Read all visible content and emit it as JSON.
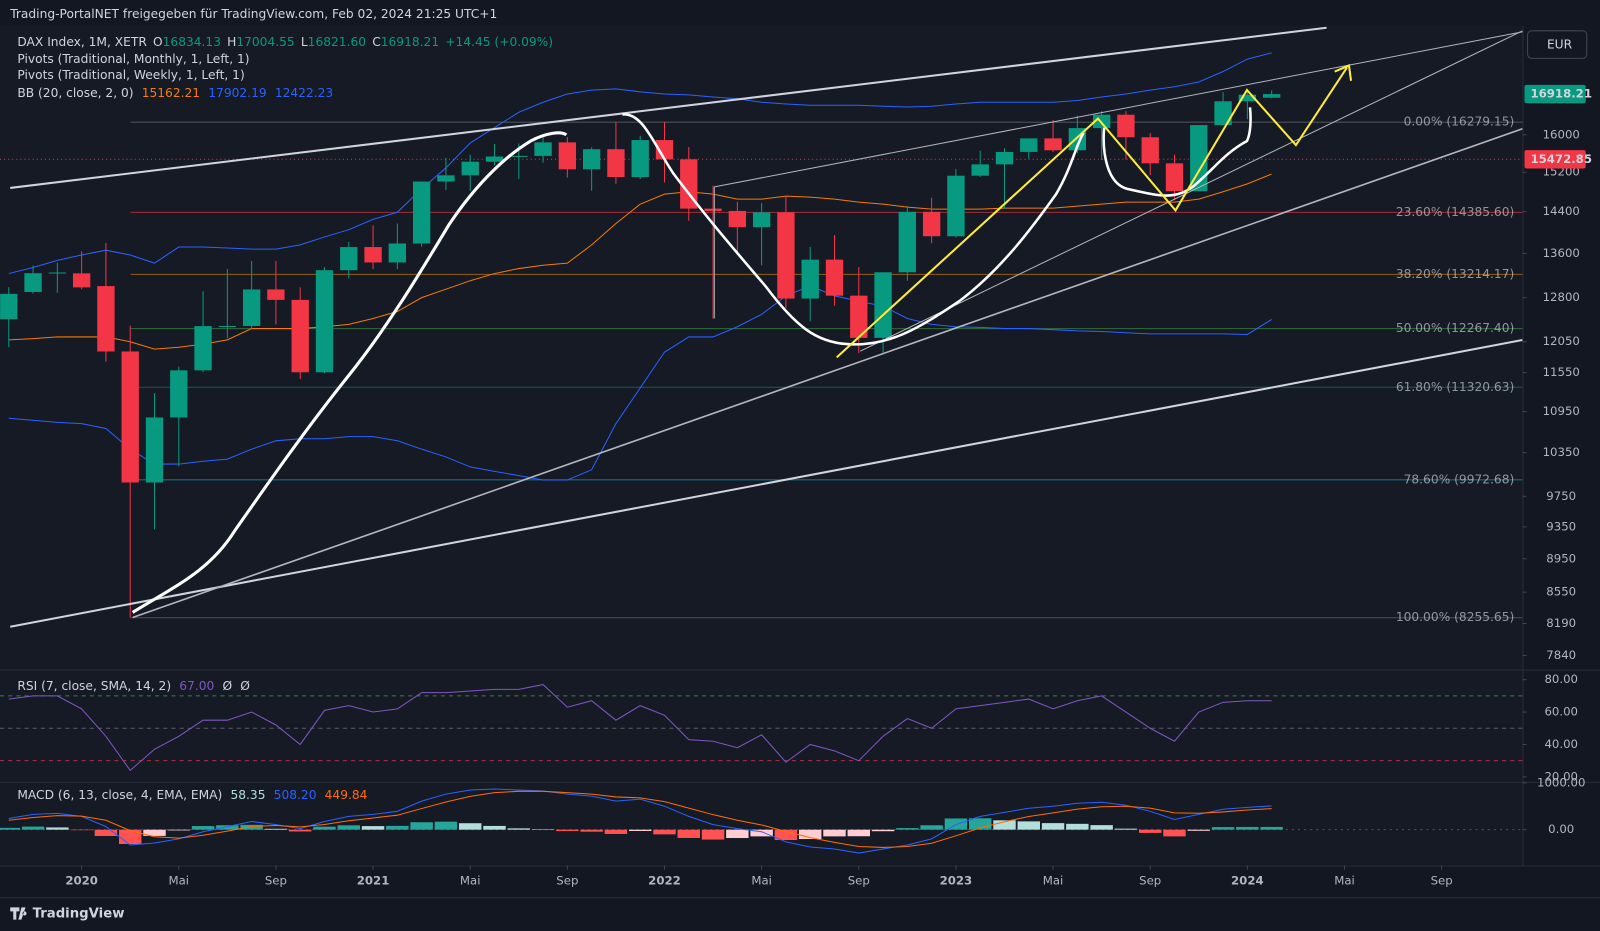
{
  "header": "Trading-PortalNET freigegeben für TradingView.com, Feb 02, 2024 21:25 UTC+1",
  "footer": "TradingView",
  "chart_data": [
    {
      "type": "candlestick",
      "title": "DAX Index, 1M, XETR",
      "currency": "EUR",
      "ohlc_keys": [
        "O",
        "H",
        "L",
        "C"
      ],
      "legend_labels": [
        "16834.13",
        "17004.55",
        "16821.60",
        "16918.21"
      ],
      "change": "+14.45 (+0.09%)",
      "indicators": [
        "Pivots (Traditional, Monthly, 1, Left, 1)",
        "Pivots (Traditional, Weekly, 1, Left, 1)"
      ],
      "up_color": "#089981",
      "down_color": "#f23645",
      "log_scale": true,
      "grid": false,
      "x": [
        "2019-10",
        "2019-11",
        "2019-12",
        "2020-01",
        "2020-02",
        "2020-03",
        "2020-04",
        "2020-05",
        "2020-06",
        "2020-07",
        "2020-08",
        "2020-09",
        "2020-10",
        "2020-11",
        "2020-12",
        "2021-01",
        "2021-02",
        "2021-03",
        "2021-04",
        "2021-05",
        "2021-06",
        "2021-07",
        "2021-08",
        "2021-09",
        "2021-10",
        "2021-11",
        "2021-12",
        "2022-01",
        "2022-02",
        "2022-03",
        "2022-04",
        "2022-05",
        "2022-06",
        "2022-07",
        "2022-08",
        "2022-09",
        "2022-10",
        "2022-11",
        "2022-12",
        "2023-01",
        "2023-02",
        "2023-03",
        "2023-04",
        "2023-05",
        "2023-06",
        "2023-07",
        "2023-08",
        "2023-09",
        "2023-10",
        "2023-11",
        "2023-12",
        "2024-01",
        "2024-02"
      ],
      "open": [
        12428,
        12900,
        13236,
        13233,
        13005,
        11890,
        9936,
        10862,
        11587,
        12311,
        12313,
        12945,
        12761,
        11556,
        13291,
        13719,
        13433,
        13786,
        15008,
        15136,
        15421,
        15531,
        15544,
        15835,
        15261,
        15688,
        15100,
        15885,
        15471,
        14461,
        14415,
        14098,
        14388,
        12784,
        13484,
        12835,
        12114,
        13253,
        14397,
        13924,
        15128,
        15365,
        15629,
        15922,
        15664,
        16148,
        16447,
        15947,
        15387,
        14810,
        16215,
        16752,
        16834.13
      ],
      "high": [
        12986,
        13374,
        13425,
        13640,
        13795,
        12318,
        11231,
        11645,
        12913,
        13314,
        13461,
        13460,
        12983,
        13350,
        13816,
        14131,
        14169,
        15008,
        15502,
        15568,
        15803,
        15810,
        15981,
        15950,
        15727,
        16290,
        15978,
        16285,
        15736,
        14925,
        14597,
        14575,
        14707,
        13720,
        13947,
        13349,
        13254,
        14516,
        14676,
        15270,
        15658,
        15706,
        15922,
        16331,
        16427,
        16529,
        16528,
        16043,
        15575,
        16215,
        16963,
        16990,
        17004.55
      ],
      "low": [
        11958,
        12870,
        12886,
        12948,
        11725,
        8256,
        9320,
        10160,
        11557,
        12107,
        12253,
        12340,
        11450,
        11542,
        13144,
        13310,
        13310,
        13727,
        14836,
        14816,
        15345,
        15062,
        15400,
        15089,
        14819,
        14959,
        15058,
        14989,
        14223,
        12439,
        13618,
        13381,
        12618,
        12391,
        12659,
        11863,
        11869,
        13099,
        13791,
        13900,
        15101,
        14458,
        15482,
        15629,
        15600,
        15456,
        15469,
        15138,
        14630,
        14810,
        16215,
        16345,
        16821.6
      ],
      "close": [
        12867,
        13236,
        13249,
        12982,
        11890,
        9936,
        10862,
        11587,
        12311,
        12313,
        12945,
        12761,
        11556,
        13291,
        13719,
        13433,
        13786,
        15008,
        15136,
        15421,
        15531,
        15544,
        15835,
        15261,
        15688,
        15100,
        15885,
        15471,
        14461,
        14415,
        14098,
        14388,
        12784,
        13484,
        12835,
        12114,
        13253,
        14397,
        13924,
        15128,
        15365,
        15629,
        15922,
        15664,
        16148,
        16447,
        15947,
        15387,
        14810,
        16215,
        16752,
        16904,
        16918.21
      ],
      "ylim": [
        7700,
        18580
      ],
      "yticks": [
        16000,
        15200,
        14400,
        13600,
        12800,
        12050,
        11550,
        10950,
        10350,
        9750,
        9350,
        8950,
        8550,
        8190,
        7840
      ],
      "xticks": [
        {
          "value": "2020-01",
          "label": "2020"
        },
        {
          "value": "2020-05",
          "label": "Mai"
        },
        {
          "value": "2020-09",
          "label": "Sep"
        },
        {
          "value": "2021-01",
          "label": "2021"
        },
        {
          "value": "2021-05",
          "label": "Mai"
        },
        {
          "value": "2021-09",
          "label": "Sep"
        },
        {
          "value": "2022-01",
          "label": "2022"
        },
        {
          "value": "2022-05",
          "label": "Mai"
        },
        {
          "value": "2022-09",
          "label": "Sep"
        },
        {
          "value": "2023-01",
          "label": "2023"
        },
        {
          "value": "2023-05",
          "label": "Mai"
        },
        {
          "value": "2023-09",
          "label": "Sep"
        },
        {
          "value": "2024-01",
          "label": "2024"
        },
        {
          "value": "2024-05",
          "label": "Mai"
        },
        {
          "value": "2024-09",
          "label": "Sep"
        }
      ],
      "bb": {
        "title": "BB (20, close, 2, 0)",
        "series": [
          {
            "color": "#f57c00",
            "values": [
              12080,
              12100,
              12130,
              12130,
              12130,
              12050,
              11930,
              11960,
              12010,
              12080,
              12270,
              12270,
              12270,
              12300,
              12340,
              12440,
              12560,
              12800,
              12950,
              13100,
              13230,
              13320,
              13380,
              13420,
              13760,
              14170,
              14550,
              14750,
              14800,
              14750,
              14650,
              14650,
              14710,
              14690,
              14650,
              14590,
              14550,
              14490,
              14450,
              14450,
              14450,
              14470,
              14470,
              14470,
              14510,
              14550,
              14590,
              14590,
              14590,
              14650,
              14800,
              14960,
              15162.21
            ]
          },
          {
            "color": "#2962ff",
            "values": [
              13230,
              13340,
              13470,
              13570,
              13660,
              13570,
              13420,
              13720,
              13720,
              13700,
              13680,
              13680,
              13760,
              13910,
              14050,
              14250,
              14390,
              14860,
              15290,
              15820,
              16160,
              16500,
              16730,
              16920,
              17010,
              17040,
              16970,
              16920,
              16900,
              16850,
              16810,
              16730,
              16690,
              16660,
              16660,
              16660,
              16640,
              16620,
              16640,
              16690,
              16730,
              16730,
              16730,
              16730,
              16770,
              16850,
              16920,
              17010,
              17090,
              17200,
              17450,
              17750,
              17902.19
            ]
          },
          {
            "color": "#2962ff",
            "values": [
              10850,
              10820,
              10790,
              10770,
              10700,
              10400,
              10190,
              10190,
              10230,
              10260,
              10400,
              10520,
              10550,
              10550,
              10580,
              10580,
              10520,
              10400,
              10290,
              10150,
              10090,
              10030,
              9970,
              9970,
              10110,
              10770,
              11310,
              11880,
              12130,
              12130,
              12300,
              12510,
              12830,
              13010,
              12830,
              12740,
              12650,
              12440,
              12340,
              12300,
              12290,
              12270,
              12270,
              12250,
              12230,
              12220,
              12200,
              12180,
              12180,
              12180,
              12180,
              12170,
              12422.23
            ]
          }
        ]
      },
      "fib": [
        {
          "value": 16279.15,
          "label": "0.00% (16279.15)",
          "color": "#787b86"
        },
        {
          "value": 14385.6,
          "label": "23.60% (14385.60)",
          "color": "#f23645"
        },
        {
          "value": 13214.17,
          "label": "38.20% (13214.17)",
          "color": "#ff9800"
        },
        {
          "value": 12267.4,
          "label": "50.00% (12267.40)",
          "color": "#4caf50"
        },
        {
          "value": 11320.63,
          "label": "61.80% (11320.63)",
          "color": "#089981"
        },
        {
          "value": 9972.68,
          "label": "78.60% (9972.68)",
          "color": "#00bcd4"
        },
        {
          "value": 8255.65,
          "label": "100.00% (8255.65)",
          "color": "#787b86"
        }
      ],
      "price_line": {
        "value": 15472.85,
        "color": "#f23645"
      }
    },
    {
      "type": "line",
      "title": "RSI (7, close, SMA, 14, 2)",
      "extras": [
        "Ø",
        "Ø"
      ],
      "color": "#7e57c2",
      "value_label": "67.00",
      "values": [
        68,
        70,
        70,
        62,
        45,
        24,
        37,
        45,
        55,
        55,
        60,
        52,
        40,
        61,
        64,
        60,
        62,
        72,
        72,
        73,
        74,
        74,
        77,
        63,
        67,
        55,
        64,
        58,
        43,
        42,
        38,
        46,
        29,
        40,
        36,
        30,
        45,
        56,
        50,
        62,
        64,
        66,
        68,
        62,
        67,
        70,
        60,
        50,
        42,
        60,
        66,
        67,
        67
      ],
      "ylim": [
        16.3,
        85.6
      ],
      "yticks": [
        {
          "value": 80,
          "label": "80.00"
        },
        {
          "value": 60,
          "label": "60.00"
        },
        {
          "value": 40,
          "label": "40.00"
        },
        {
          "value": 20,
          "label": "20.00"
        }
      ],
      "levels": [
        70,
        50,
        30
      ],
      "level_colors": [
        "#4caf50",
        "#787b86",
        "#f23645"
      ]
    },
    {
      "type": "combo",
      "title": "MACD (6, 13, close, 4, EMA, EMA)",
      "histogram": {
        "colors": [
          "#26a69a",
          "#b2dfdb",
          "#ff5252",
          "#ffcdd2"
        ],
        "values": [
          39,
          66,
          48,
          -7,
          -135,
          -306,
          -133,
          -16,
          77,
          95,
          104,
          19,
          -38,
          64,
          93,
          76,
          81,
          159,
          171,
          138,
          80,
          28,
          6,
          -29,
          -43,
          -91,
          -28,
          -100,
          -177,
          -211,
          -178,
          -143,
          -221,
          -200,
          -143,
          -140,
          -33,
          34,
          94,
          239,
          243,
          200,
          177,
          140,
          125,
          97,
          22,
          -69,
          -143,
          -24,
          55,
          58,
          58.35
        ]
      },
      "series": [
        {
          "color": "#2962ff",
          "value_label": "508.20",
          "values": [
            239,
            326,
            348,
            283,
            65,
            -326,
            -283,
            -196,
            -43,
            65,
            174,
            109,
            22,
            174,
            283,
            326,
            391,
            609,
            761,
            848,
            870,
            848,
            826,
            761,
            717,
            609,
            652,
            500,
            283,
            109,
            22,
            -43,
            -261,
            -370,
            -413,
            -500,
            -413,
            -326,
            -196,
            109,
            283,
            370,
            457,
            500,
            565,
            587,
            522,
            391,
            217,
            326,
            435,
            478,
            508.2
          ]
        },
        {
          "color": "#ff6d00",
          "value_label": "449.84",
          "values": [
            200,
            260,
            300,
            290,
            200,
            -20,
            -150,
            -180,
            -120,
            -30,
            70,
            90,
            60,
            110,
            190,
            250,
            310,
            450,
            590,
            710,
            790,
            820,
            820,
            790,
            760,
            700,
            680,
            600,
            460,
            320,
            200,
            100,
            -40,
            -170,
            -270,
            -360,
            -380,
            -360,
            -290,
            -130,
            40,
            170,
            280,
            360,
            440,
            490,
            500,
            460,
            360,
            350,
            380,
            420,
            449.84
          ]
        }
      ],
      "ylim": [
        -765,
        1000
      ],
      "yticks": [
        {
          "value": 1000,
          "label": "1000.00"
        },
        {
          "value": 0,
          "label": "0.00"
        }
      ]
    }
  ]
}
